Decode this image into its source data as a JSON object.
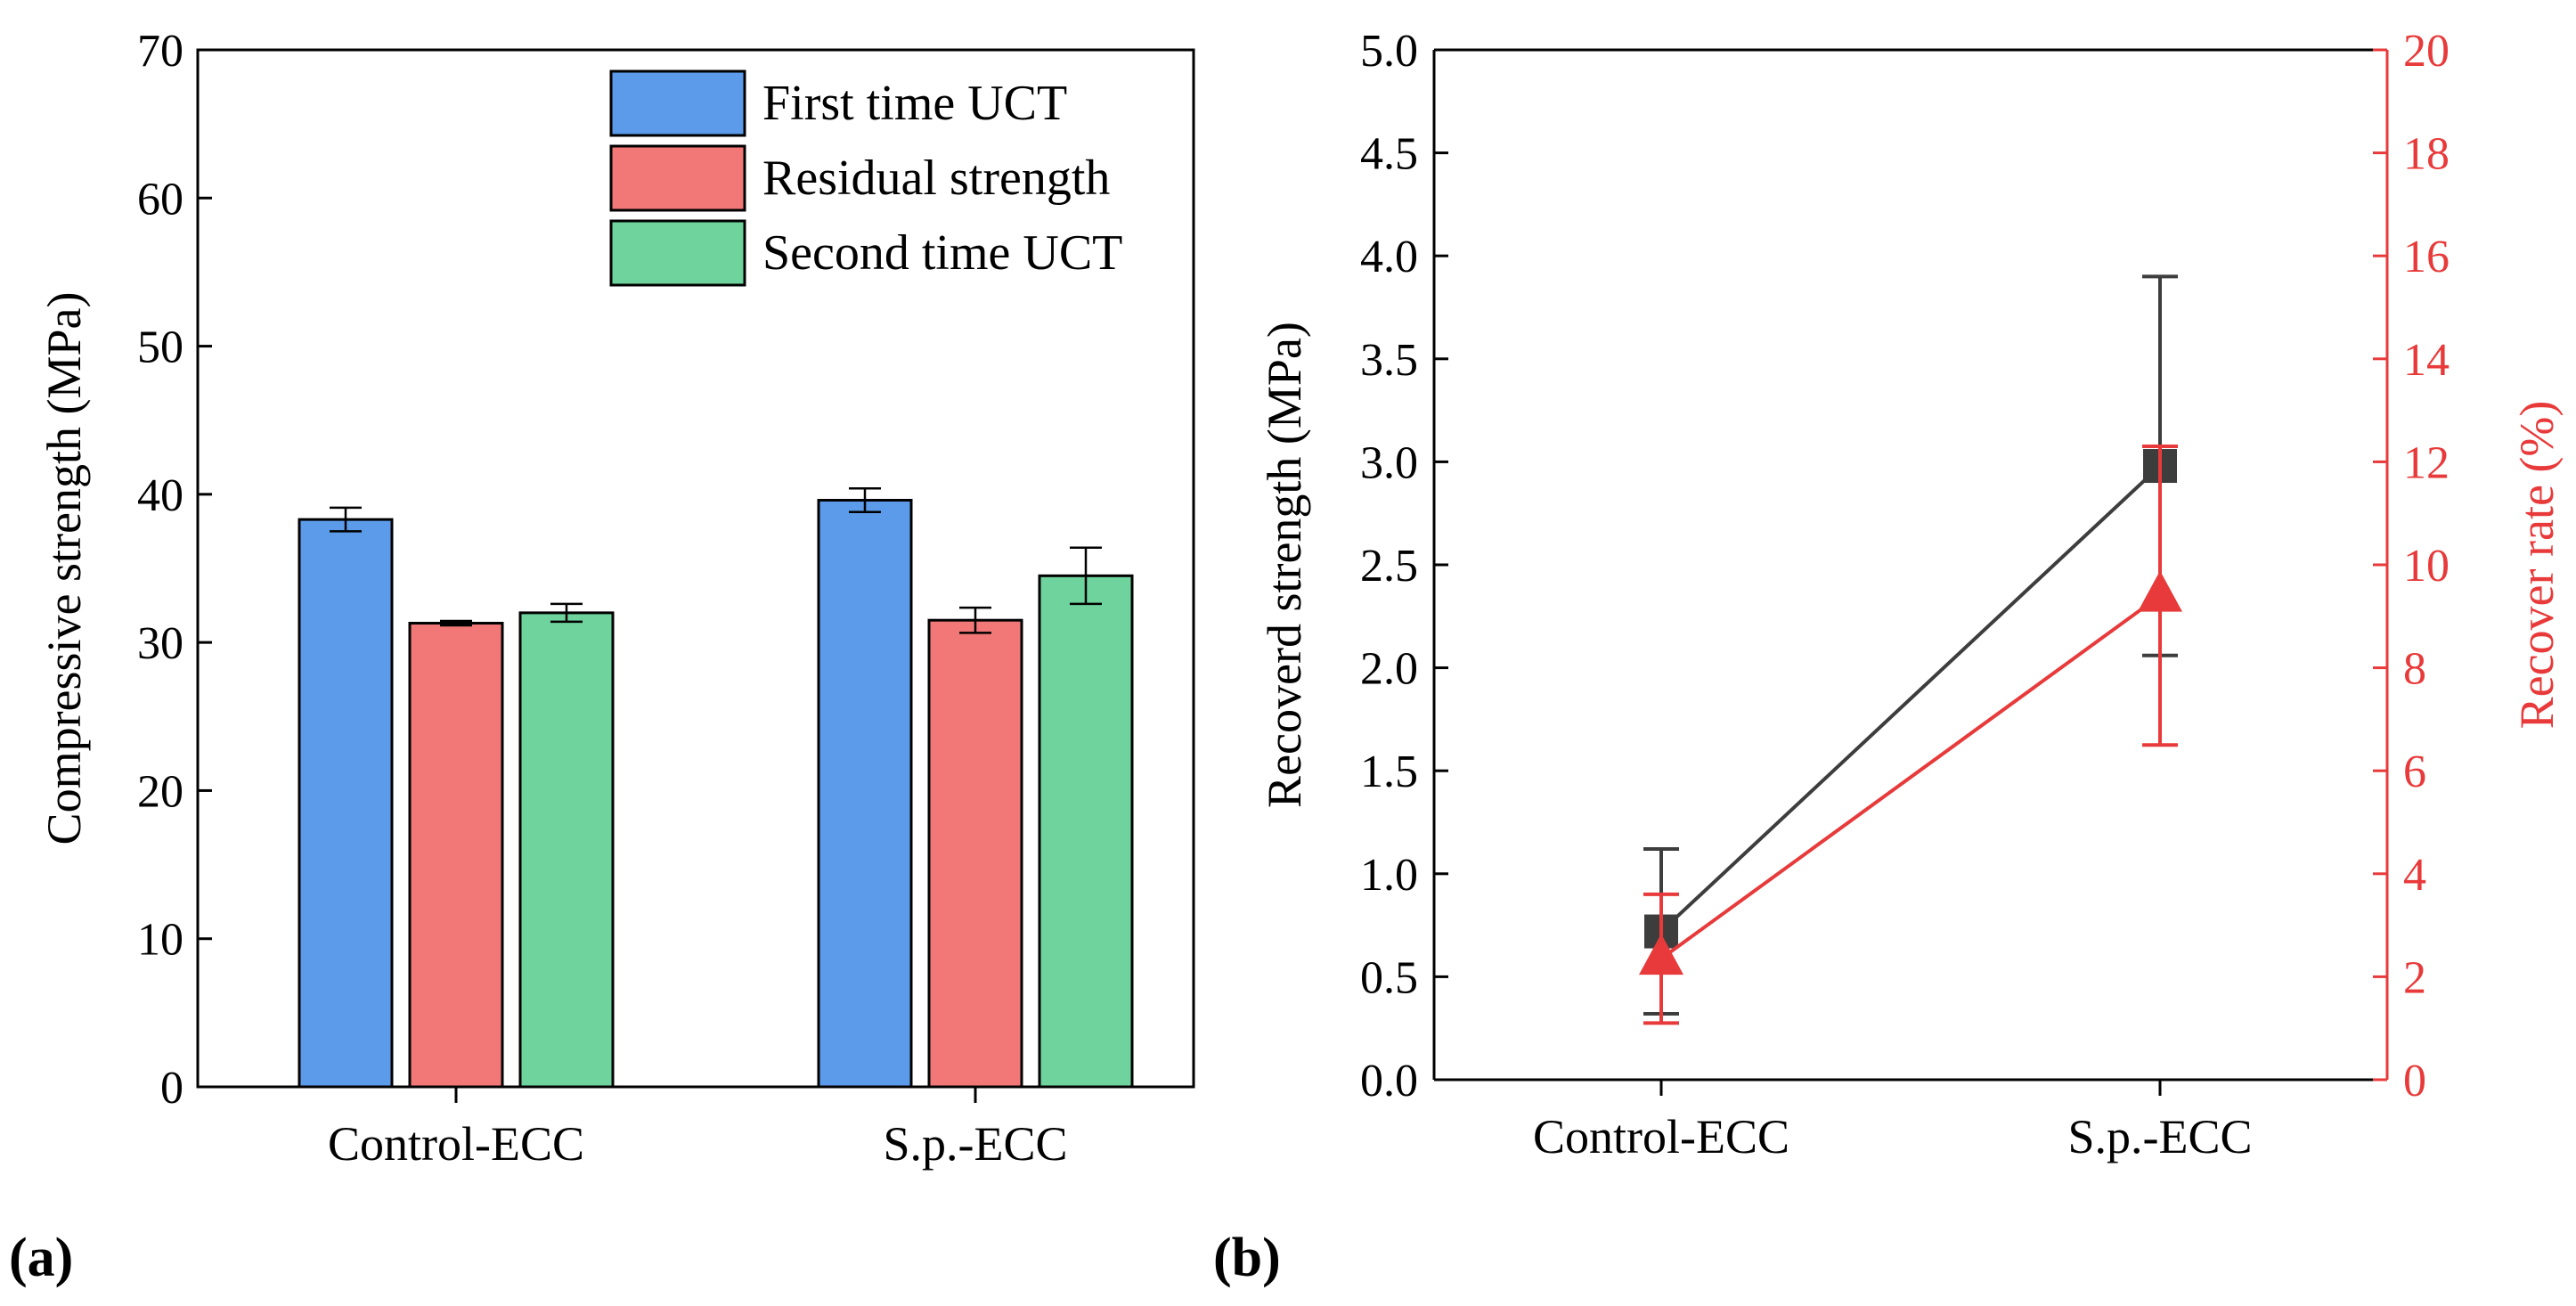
{
  "panels": {
    "a_label": "(a)",
    "b_label": "(b)"
  },
  "chart_data": [
    {
      "type": "bar",
      "panel": "a",
      "categories": [
        "Control-ECC",
        "S.p.-ECC"
      ],
      "ylabel": "Compressive strength (MPa)",
      "xlabel": "",
      "ylim": [
        0,
        70
      ],
      "yticks": [
        0,
        10,
        20,
        30,
        40,
        50,
        60,
        70
      ],
      "grid": false,
      "legend_position": "top-right",
      "series": [
        {
          "name": "First time UCT",
          "color": "#5b9be9",
          "values": [
            38.3,
            39.6
          ],
          "errors": [
            0.8,
            0.8
          ]
        },
        {
          "name": "Residual strength",
          "color": "#f27878",
          "values": [
            31.3,
            31.5
          ],
          "errors": [
            0.15,
            0.85
          ]
        },
        {
          "name": "Second time UCT",
          "color": "#6ed39c",
          "values": [
            32.0,
            34.5
          ],
          "errors": [
            0.6,
            1.9
          ]
        }
      ]
    },
    {
      "type": "line",
      "panel": "b",
      "categories": [
        "Control-ECC",
        "S.p.-ECC"
      ],
      "xlabel": "",
      "grid": false,
      "y_left": {
        "label": "Recoverd strength (MPa)",
        "lim": [
          0,
          5
        ],
        "ticks": [
          "0.0",
          "0.5",
          "1.0",
          "1.5",
          "2.0",
          "2.5",
          "3.0",
          "3.5",
          "4.0",
          "4.5",
          "5.0"
        ],
        "color": "#000000"
      },
      "y_right": {
        "label": "Recover rate (%)",
        "lim": [
          0,
          20
        ],
        "ticks": [
          "0",
          "2",
          "4",
          "6",
          "8",
          "10",
          "12",
          "14",
          "16",
          "18",
          "20"
        ],
        "color": "#e83a3a"
      },
      "series": [
        {
          "name": "",
          "axis": "left",
          "marker": "square",
          "color": "#3d3d3d",
          "values": [
            0.72,
            2.98
          ],
          "errors": [
            0.4,
            0.92
          ]
        },
        {
          "name": "",
          "axis": "right",
          "marker": "triangle",
          "color": "#e83a3a",
          "values": [
            2.35,
            9.4
          ],
          "errors": [
            1.25,
            2.9
          ]
        }
      ]
    }
  ]
}
